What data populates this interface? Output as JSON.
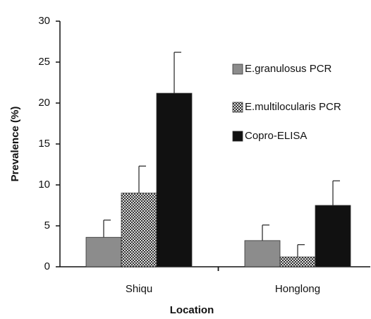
{
  "chart_data": {
    "type": "bar",
    "categories": [
      "Shiqu",
      "Honglong"
    ],
    "x_label": "Location",
    "y_label": "Prevalence (%)",
    "ylim": [
      0,
      30
    ],
    "yticks": [
      0,
      5,
      10,
      15,
      20,
      25,
      30
    ],
    "series": [
      {
        "name": "E.granulosus PCR",
        "color": "#8c8c8c",
        "pattern": "solid",
        "values": [
          3.6,
          3.2
        ],
        "errors": [
          2.1,
          1.9
        ]
      },
      {
        "name": "E.multilocularis PCR",
        "color": "#8c8c8c",
        "pattern": "dotted",
        "values": [
          9.0,
          1.2
        ],
        "errors": [
          3.3,
          1.5
        ]
      },
      {
        "name": "Copro-ELISA",
        "color": "#111111",
        "pattern": "solid",
        "values": [
          21.2,
          7.5
        ],
        "errors": [
          5.0,
          3.0
        ]
      }
    ],
    "legend": "right"
  }
}
